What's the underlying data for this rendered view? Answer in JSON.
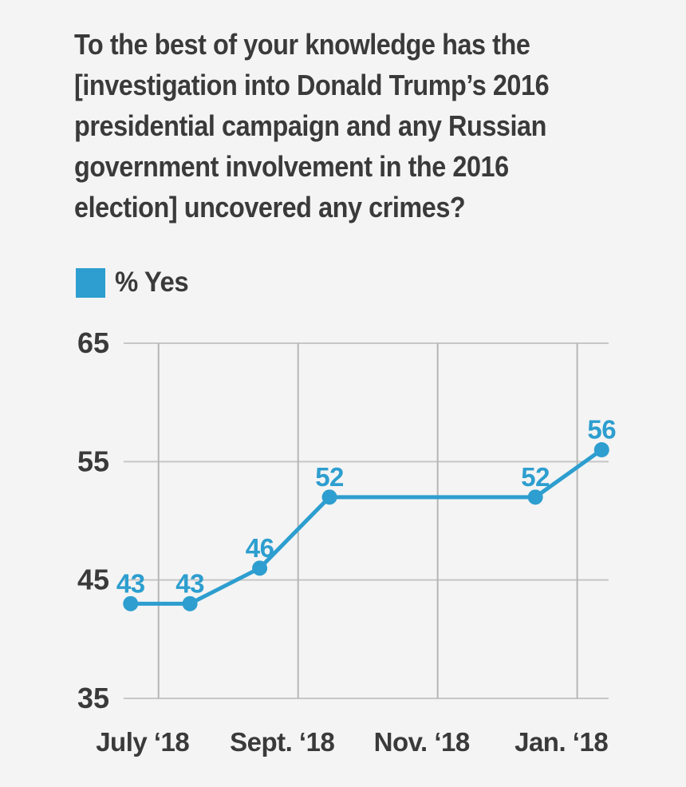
{
  "question": {
    "text": "To the best of your knowledge has the [investigation into Donald Trump’s 2016 presidential campaign and any Russian government involvement in the 2016 election] uncovered any crimes?",
    "lines": [
      "To the best of your knowledge has the",
      "[investigation into Donald Trump’s 2016",
      "presidential campaign and any Russian",
      "government involvement in the 2016",
      "election] uncovered any crimes?"
    ]
  },
  "legend": {
    "label": "% Yes",
    "position": "top-left"
  },
  "colors": {
    "background": "#f4f4f4",
    "accent": "#2d9ecf",
    "text_dark": "#3a3a3a",
    "grid_horizontal": "#c6c6c6",
    "grid_vertical": "#b6b6b6"
  },
  "chart_data": {
    "type": "line",
    "title": "To the best of your knowledge has the [investigation into Donald Trump’s 2016 presidential campaign and any Russian government involvement in the 2016 election] uncovered any crimes?",
    "grid": true,
    "legend_position": "top-left",
    "x_axis": {
      "unit": "months (Jan 2018 = 1)",
      "range": [
        6.5,
        13.45
      ],
      "ticks": [
        {
          "value": 7,
          "label": "July ‘18"
        },
        {
          "value": 9,
          "label": "Sept. ‘18"
        },
        {
          "value": 11,
          "label": "Nov. ‘18"
        },
        {
          "value": 13,
          "label": "Jan. ‘18"
        }
      ]
    },
    "y_axis": {
      "range": [
        35,
        65
      ],
      "ticks": [
        65,
        55,
        45,
        35
      ]
    },
    "series": [
      {
        "name": "% Yes",
        "color": "#2d9ecf",
        "x": [
          6.6,
          7.45,
          8.45,
          9.45,
          12.4,
          13.35
        ],
        "values": [
          43,
          43,
          46,
          52,
          52,
          56
        ],
        "point_labels": [
          "43",
          "43",
          "46",
          "52",
          "52",
          "56"
        ]
      }
    ]
  }
}
